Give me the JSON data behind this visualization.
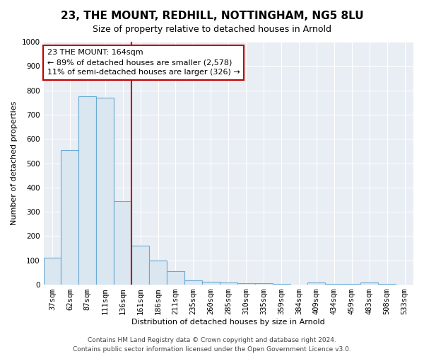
{
  "title": "23, THE MOUNT, REDHILL, NOTTINGHAM, NG5 8LU",
  "subtitle": "Size of property relative to detached houses in Arnold",
  "xlabel": "Distribution of detached houses by size in Arnold",
  "ylabel": "Number of detached properties",
  "bar_color": "#dae6f0",
  "bar_edge_color": "#6aaad4",
  "plot_bg_color": "#e8eef4",
  "fig_bg_color": "#ffffff",
  "grid_color": "#ffffff",
  "categories": [
    "37sqm",
    "62sqm",
    "87sqm",
    "111sqm",
    "136sqm",
    "161sqm",
    "186sqm",
    "211sqm",
    "235sqm",
    "260sqm",
    "285sqm",
    "310sqm",
    "335sqm",
    "359sqm",
    "384sqm",
    "409sqm",
    "434sqm",
    "459sqm",
    "483sqm",
    "508sqm",
    "533sqm"
  ],
  "values": [
    110,
    555,
    775,
    770,
    345,
    162,
    98,
    55,
    18,
    12,
    8,
    6,
    5,
    4,
    0,
    8,
    3,
    3,
    8,
    3,
    0
  ],
  "ylim": [
    0,
    1000
  ],
  "yticks": [
    0,
    100,
    200,
    300,
    400,
    500,
    600,
    700,
    800,
    900,
    1000
  ],
  "property_line_index": 5,
  "property_line_color": "#c00000",
  "annotation_line1": "23 THE MOUNT: 164sqm",
  "annotation_line2": "← 89% of detached houses are smaller (2,578)",
  "annotation_line3": "11% of semi-detached houses are larger (326) →",
  "annotation_box_color": "#ffffff",
  "annotation_box_edge": "#c00000",
  "footer_line1": "Contains HM Land Registry data © Crown copyright and database right 2024.",
  "footer_line2": "Contains public sector information licensed under the Open Government Licence v3.0.",
  "title_fontsize": 11,
  "subtitle_fontsize": 9,
  "axis_label_fontsize": 8,
  "tick_fontsize": 7.5,
  "annotation_fontsize": 8,
  "footer_fontsize": 6.5
}
